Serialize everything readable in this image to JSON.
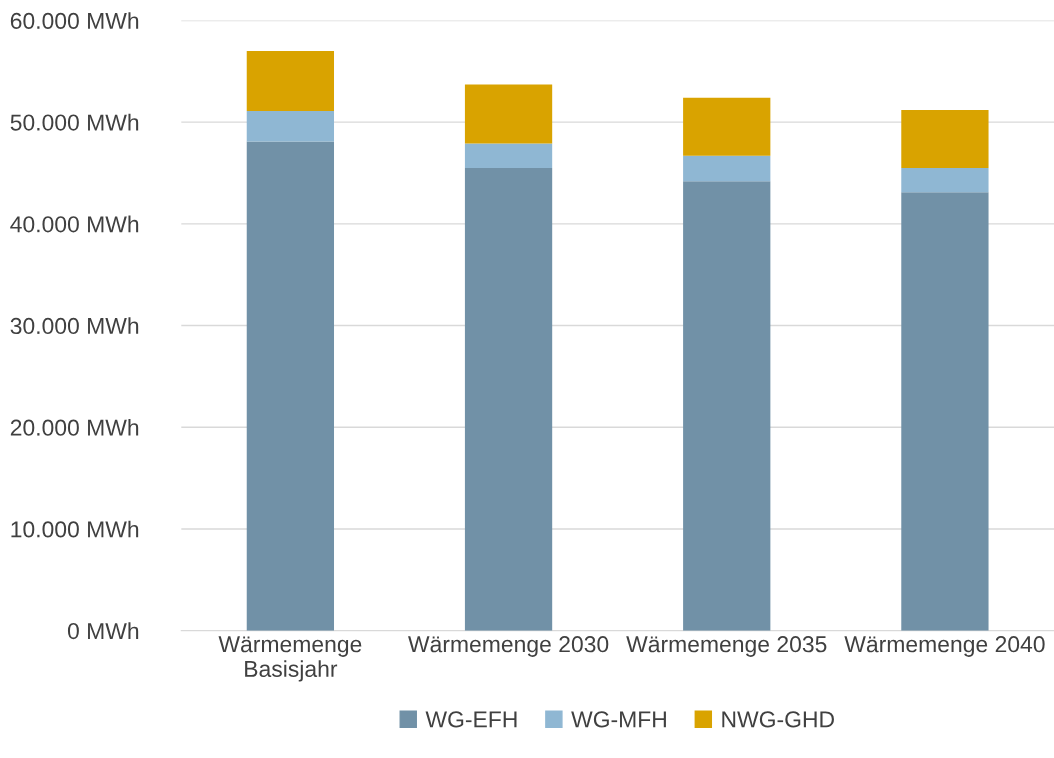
{
  "chart_data": {
    "type": "bar",
    "stacked": true,
    "categories": [
      "Wärmemenge\nBasisjahr",
      "Wärmemenge 2030",
      "Wärmemenge 2035",
      "Wärmemenge 2040"
    ],
    "series": [
      {
        "name": "WG-EFH",
        "color": "#7191a7",
        "values": [
          48100,
          45500,
          44200,
          43100
        ]
      },
      {
        "name": "WG-MFH",
        "color": "#8fb7d3",
        "values": [
          3000,
          2400,
          2500,
          2400
        ]
      },
      {
        "name": "NWG-GHD",
        "color": "#d9a300",
        "values": [
          5900,
          5800,
          5700,
          5700
        ]
      }
    ],
    "ylim": [
      0,
      60000
    ],
    "yticks": [
      {
        "value": 0,
        "label": "0 MWh"
      },
      {
        "value": 10000,
        "label": "10.000 MWh"
      },
      {
        "value": 20000,
        "label": "20.000 MWh"
      },
      {
        "value": 30000,
        "label": "30.000 MWh"
      },
      {
        "value": 40000,
        "label": "40.000 MWh"
      },
      {
        "value": 50000,
        "label": "50.000 MWh"
      },
      {
        "value": 60000,
        "label": "60.000 MWh"
      }
    ],
    "grid": "y",
    "legend": "bottom"
  }
}
